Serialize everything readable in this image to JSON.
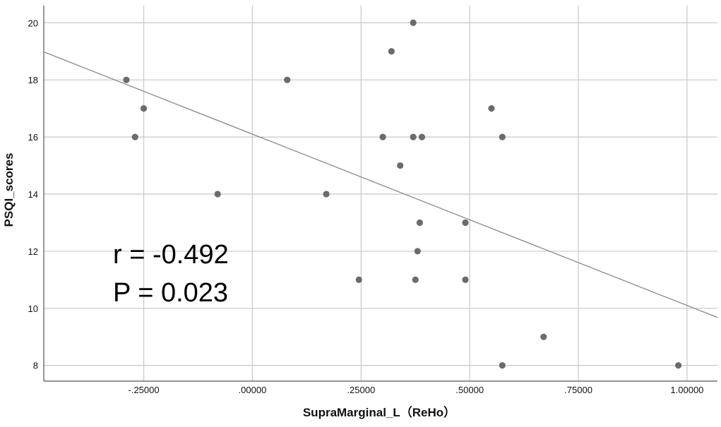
{
  "chart_data": {
    "type": "scatter",
    "xlabel": "SupraMarginal_L（ReHo）",
    "ylabel": "PSQI_scores",
    "xlim": [
      -0.48,
      1.07
    ],
    "ylim": [
      7.45,
      20.6
    ],
    "x_ticks": [
      -0.25,
      0.0,
      0.25,
      0.5,
      0.75,
      1.0
    ],
    "x_tick_labels": [
      "-.25000",
      ".00000",
      ".25000",
      ".50000",
      ".75000",
      "1.00000"
    ],
    "y_ticks": [
      8,
      10,
      12,
      14,
      16,
      18,
      20
    ],
    "y_tick_labels": [
      "8",
      "10",
      "12",
      "14",
      "16",
      "18",
      "20"
    ],
    "grid": true,
    "points": [
      {
        "x": -0.29,
        "y": 18
      },
      {
        "x": -0.25,
        "y": 17
      },
      {
        "x": -0.27,
        "y": 16
      },
      {
        "x": -0.08,
        "y": 14
      },
      {
        "x": 0.08,
        "y": 18
      },
      {
        "x": 0.17,
        "y": 14
      },
      {
        "x": 0.245,
        "y": 11
      },
      {
        "x": 0.3,
        "y": 16
      },
      {
        "x": 0.32,
        "y": 19
      },
      {
        "x": 0.34,
        "y": 15
      },
      {
        "x": 0.37,
        "y": 20
      },
      {
        "x": 0.37,
        "y": 16
      },
      {
        "x": 0.39,
        "y": 16
      },
      {
        "x": 0.385,
        "y": 13
      },
      {
        "x": 0.38,
        "y": 12
      },
      {
        "x": 0.375,
        "y": 11
      },
      {
        "x": 0.49,
        "y": 13
      },
      {
        "x": 0.49,
        "y": 11
      },
      {
        "x": 0.55,
        "y": 17
      },
      {
        "x": 0.575,
        "y": 16
      },
      {
        "x": 0.575,
        "y": 8
      },
      {
        "x": 0.67,
        "y": 9
      },
      {
        "x": 0.98,
        "y": 8
      }
    ],
    "fit_line": {
      "intercept": 16.1,
      "slope": -6.0
    },
    "annotations": {
      "r_text": "r = -0.492",
      "p_text": "P = 0.023"
    }
  },
  "colors": {
    "point": "#6b6b6b",
    "fit_line": "#8a8a8a",
    "grid": "#c8c8c8",
    "axis": "#555555"
  }
}
